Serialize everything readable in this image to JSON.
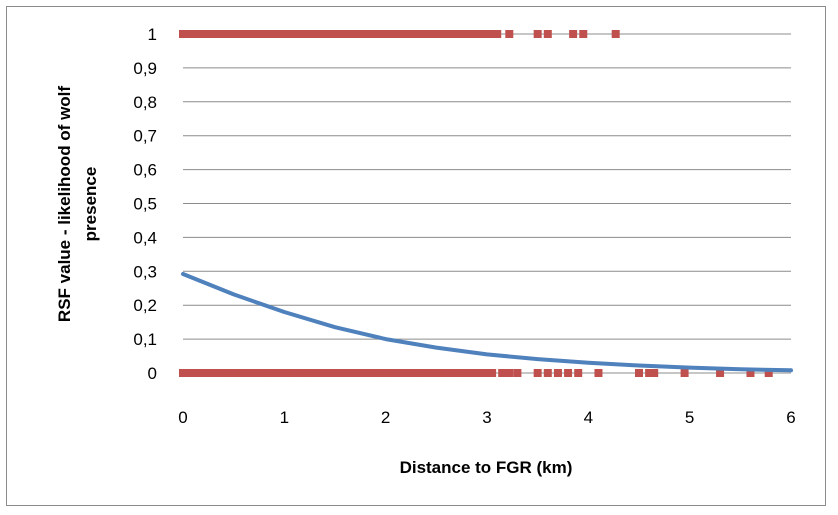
{
  "chart_data": {
    "type": "scatter",
    "title": "",
    "xlabel": "Distance to FGR (km)",
    "ylabel_lines": [
      "RSF value - likelihood of wolf",
      "presence"
    ],
    "xlim": [
      0,
      6
    ],
    "ylim": [
      0,
      1
    ],
    "x_ticks": [
      0,
      1,
      2,
      3,
      4,
      5,
      6
    ],
    "x_tick_labels": [
      "0",
      "1",
      "2",
      "3",
      "4",
      "5",
      "6"
    ],
    "y_ticks": [
      0,
      0.1,
      0.2,
      0.3,
      0.4,
      0.5,
      0.6,
      0.7,
      0.8,
      0.9,
      1
    ],
    "y_tick_labels": [
      "0",
      "0,1",
      "0,2",
      "0,3",
      "0,4",
      "0,5",
      "0,6",
      "0,7",
      "0,8",
      "0,9",
      "1"
    ],
    "grid": "horizontal",
    "legend": "none",
    "series": [
      {
        "kind": "points",
        "color": "#c0504d",
        "marker": "square",
        "y": 1,
        "dense_range": [
          0,
          3.1
        ],
        "x": [
          0,
          0.1,
          0.2,
          0.3,
          0.4,
          0.5,
          0.6,
          0.7,
          0.8,
          0.9,
          1.0,
          1.1,
          1.2,
          1.3,
          1.4,
          1.5,
          1.6,
          1.7,
          1.8,
          1.9,
          2.0,
          2.1,
          2.2,
          2.3,
          2.4,
          2.5,
          2.6,
          2.7,
          2.8,
          2.9,
          3.0,
          3.1,
          3.22,
          3.5,
          3.6,
          3.85,
          3.95,
          4.27
        ]
      },
      {
        "kind": "points",
        "color": "#c0504d",
        "marker": "square",
        "y": 0,
        "dense_range": [
          0,
          3.05
        ],
        "x": [
          0,
          0.1,
          0.2,
          0.3,
          0.4,
          0.5,
          0.6,
          0.7,
          0.8,
          0.9,
          1.0,
          1.1,
          1.2,
          1.3,
          1.4,
          1.5,
          1.6,
          1.7,
          1.8,
          1.9,
          2.0,
          2.1,
          2.2,
          2.3,
          2.4,
          2.5,
          2.6,
          2.7,
          2.8,
          2.9,
          3.0,
          3.05,
          3.15,
          3.22,
          3.3,
          3.5,
          3.6,
          3.7,
          3.8,
          3.9,
          4.1,
          4.5,
          4.6,
          4.65,
          4.95,
          5.3,
          5.6,
          5.78
        ]
      },
      {
        "kind": "curve",
        "color": "#4f81bd",
        "x": [
          0,
          0.5,
          1,
          1.5,
          2,
          2.5,
          3,
          3.5,
          4,
          4.5,
          5,
          5.5,
          6
        ],
        "y": [
          0.292,
          0.232,
          0.18,
          0.135,
          0.1,
          0.075,
          0.055,
          0.041,
          0.03,
          0.022,
          0.016,
          0.011,
          0.008
        ]
      }
    ]
  }
}
